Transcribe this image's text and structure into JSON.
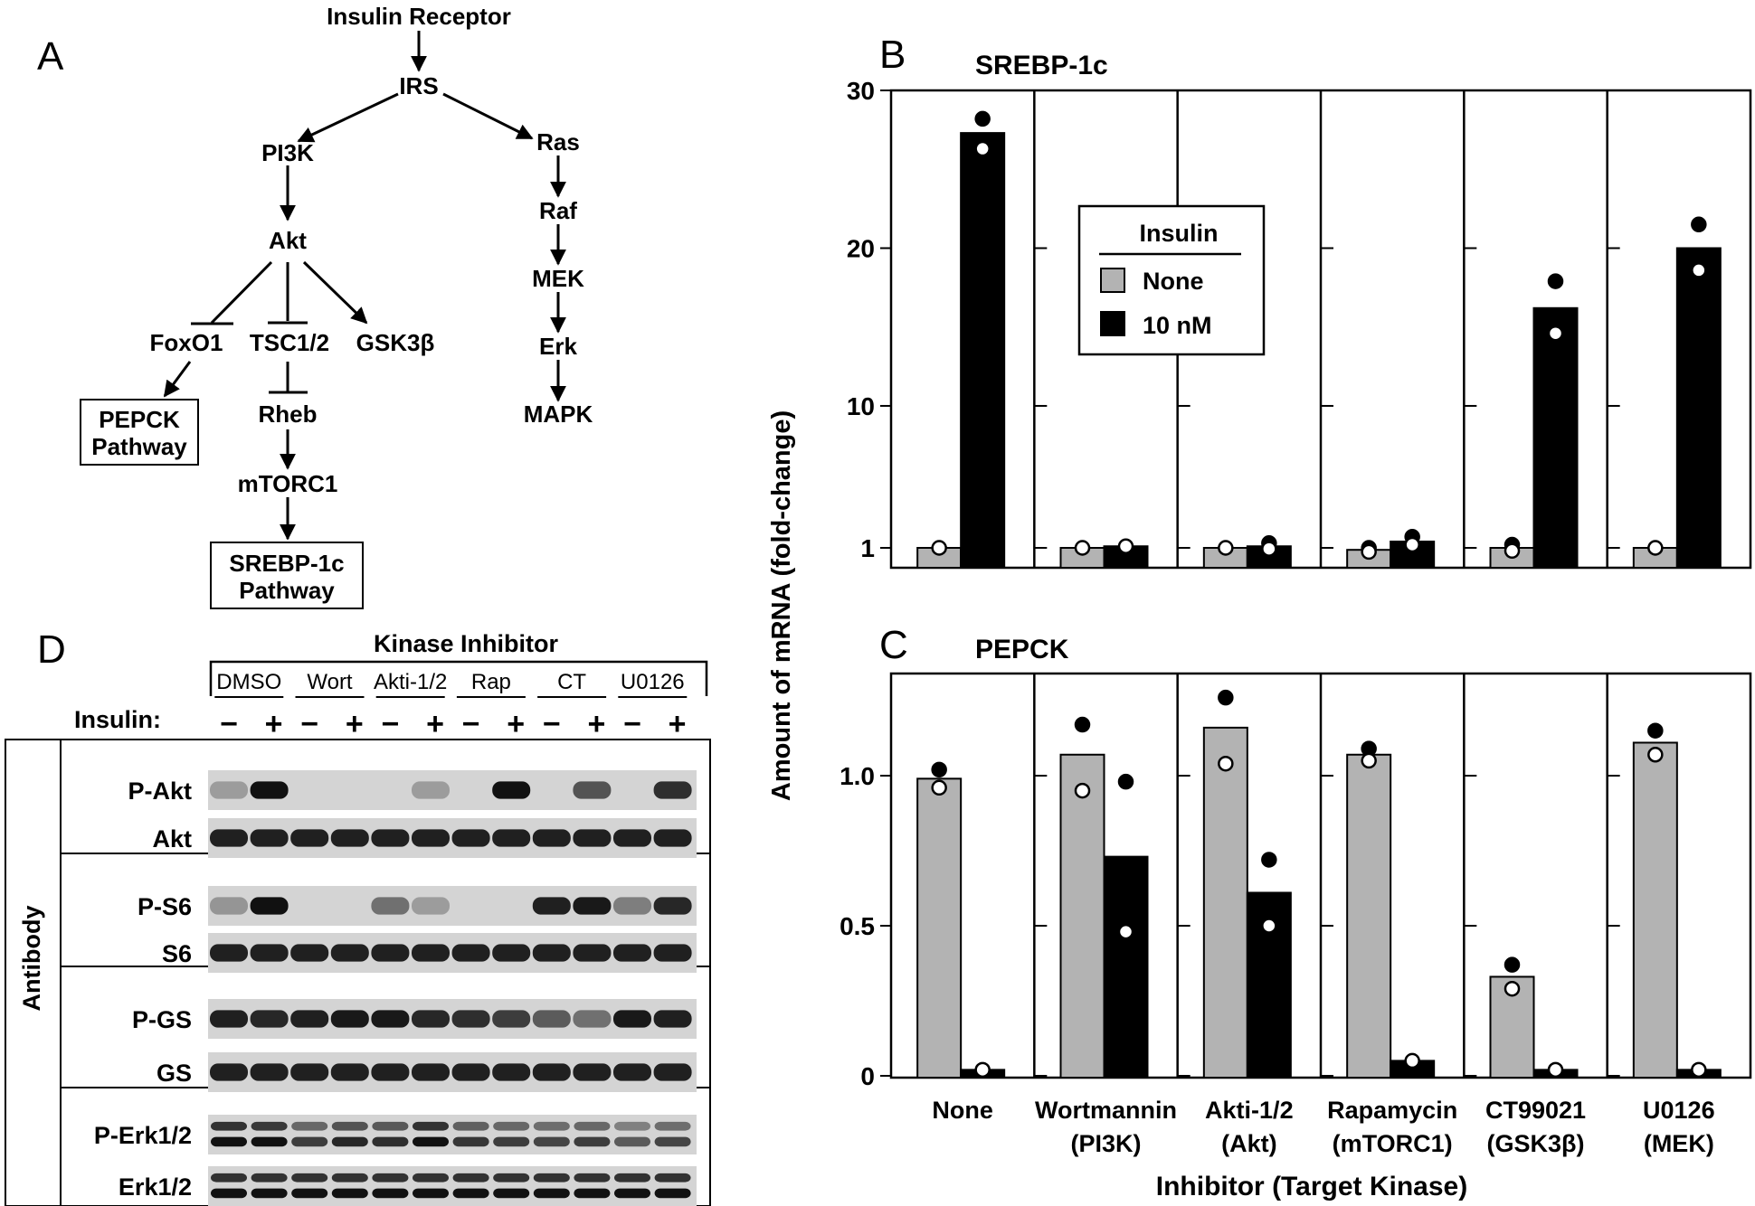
{
  "panel_labels": {
    "a": "A",
    "b": "B",
    "c": "C",
    "d": "D"
  },
  "pathway": {
    "nodes": {
      "insulin_receptor": "Insulin Receptor",
      "irs": "IRS",
      "pi3k": "PI3K",
      "ras": "Ras",
      "raf": "Raf",
      "mek": "MEK",
      "erk": "Erk",
      "mapk": "MAPK",
      "akt": "Akt",
      "foxo1": "FoxO1",
      "tsc": "TSC1/2",
      "gsk": "GSK3β",
      "pepck_l1": "PEPCK",
      "pepck_l2": "Pathway",
      "rheb": "Rheb",
      "mtorc1": "mTORC1",
      "srebp_l1": "SREBP-1c",
      "srebp_l2": "Pathway"
    }
  },
  "blot": {
    "header": "Kinase Inhibitor",
    "treatments": [
      "DMSO",
      "Wort",
      "Akti-1/2",
      "Rap",
      "CT",
      "U0126"
    ],
    "insulin_label": "Insulin:",
    "minus": "−",
    "plus": "+",
    "side_label": "Antibody",
    "rows": [
      "P-Akt",
      "Akt",
      "P-S6",
      "S6",
      "P-GS",
      "GS",
      "P-Erk1/2",
      "Erk1/2"
    ]
  },
  "shared_axes": {
    "ylabel": "Amount of mRNA (fold-change)",
    "xlabel": "Inhibitor (Target Kinase)",
    "groups": [
      {
        "l1": "None",
        "l2": ""
      },
      {
        "l1": "Wortmannin",
        "l2": "(PI3K)"
      },
      {
        "l1": "Akti-1/2",
        "l2": "(Akt)"
      },
      {
        "l1": "Rapamycin",
        "l2": "(mTORC1)"
      },
      {
        "l1": "CT99021",
        "l2": "(GSK3β)"
      },
      {
        "l1": "U0126",
        "l2": "(MEK)"
      }
    ]
  },
  "legend": {
    "title": "Insulin",
    "items": [
      {
        "label": "None",
        "color": "#b3b3b3"
      },
      {
        "label": "10 nM",
        "color": "#000000"
      }
    ]
  },
  "chart_data": [
    {
      "type": "bar",
      "title": "SREBP-1c",
      "scale": "pseudo-log",
      "yticks": [
        1,
        10,
        20,
        30
      ],
      "ylim": [
        0,
        30
      ],
      "categories": [
        "None",
        "Wortmannin (PI3K)",
        "Akti-1/2 (Akt)",
        "Rapamycin (mTORC1)",
        "CT99021 (GSK3β)",
        "U0126 (MEK)"
      ],
      "series": [
        {
          "name": "None",
          "color": "#b3b3b3",
          "values": [
            1.0,
            1.0,
            1.0,
            0.9,
            1.0,
            1.0
          ],
          "points": [
            [
              1.0,
              1.0
            ],
            [
              1.0,
              1.0
            ],
            [
              1.0,
              1.0
            ],
            [
              1.0,
              0.8
            ],
            [
              1.2,
              0.85
            ],
            [
              1.0,
              1.0
            ]
          ]
        },
        {
          "name": "10 nM",
          "color": "#000000",
          "values": [
            27.3,
            1.1,
            1.1,
            1.4,
            16.2,
            20.0
          ],
          "points": [
            [
              28.2,
              26.3
            ],
            [
              1.1,
              1.1
            ],
            [
              1.3,
              0.95
            ],
            [
              1.7,
              1.2
            ],
            [
              17.9,
              14.6
            ],
            [
              21.5,
              18.6
            ]
          ]
        }
      ]
    },
    {
      "type": "bar",
      "title": "PEPCK",
      "yticks": [
        0,
        0.5,
        1.0
      ],
      "yticklabels": [
        "0",
        "0.5",
        "1.0"
      ],
      "ylim": [
        0,
        1.35
      ],
      "categories": [
        "None",
        "Wortmannin (PI3K)",
        "Akti-1/2 (Akt)",
        "Rapamycin (mTORC1)",
        "CT99021 (GSK3β)",
        "U0126 (MEK)"
      ],
      "series": [
        {
          "name": "None",
          "color": "#b3b3b3",
          "values": [
            0.99,
            1.07,
            1.16,
            1.07,
            0.33,
            1.11
          ],
          "points": [
            [
              1.02,
              0.96
            ],
            [
              1.17,
              0.95
            ],
            [
              1.26,
              1.04
            ],
            [
              1.09,
              1.05
            ],
            [
              0.37,
              0.29
            ],
            [
              1.15,
              1.07
            ]
          ]
        },
        {
          "name": "10 nM",
          "color": "#000000",
          "values": [
            0.02,
            0.73,
            0.61,
            0.05,
            0.02,
            0.02
          ],
          "points": [
            [
              0.02,
              0.02
            ],
            [
              0.98,
              0.48
            ],
            [
              0.72,
              0.5
            ],
            [
              0.05,
              0.05
            ],
            [
              0.02,
              0.02
            ],
            [
              0.02,
              0.02
            ]
          ]
        }
      ]
    }
  ]
}
